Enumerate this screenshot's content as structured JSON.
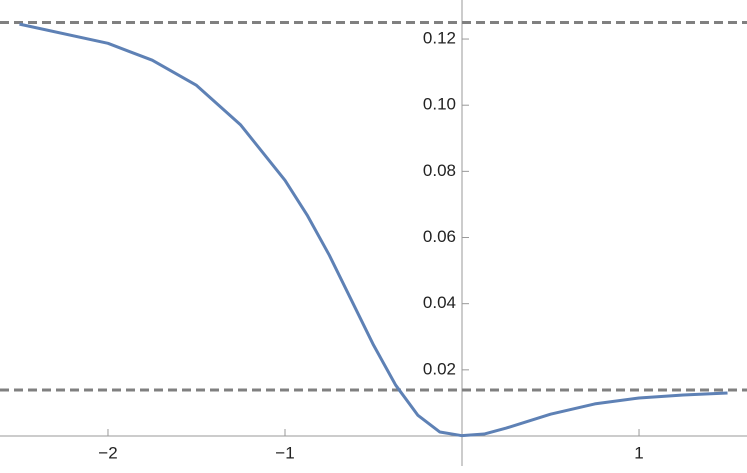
{
  "chart_data": {
    "type": "line",
    "x": [
      -2.5,
      -2,
      -1.75,
      -1.5,
      -1.25,
      -1,
      -0.875,
      -0.75,
      -0.625,
      -0.5,
      -0.375,
      -0.25,
      -0.125,
      0,
      0.125,
      0.25,
      0.5,
      0.75,
      1,
      1.25,
      1.5
    ],
    "series": [
      {
        "color": "#5e81b5",
        "values": [
          0.1245,
          0.1187,
          0.1136,
          0.106,
          0.094,
          0.0773,
          0.0668,
          0.0547,
          0.0411,
          0.0275,
          0.0154,
          0.0063,
          0.0012,
          0.0001,
          0.0006,
          0.0024,
          0.0066,
          0.0097,
          0.0115,
          0.0124,
          0.013
        ]
      }
    ],
    "reference_lines": [
      0.125,
      0.0139
    ],
    "reference_color": "#808080",
    "xlim": [
      -2.61,
      1.61
    ],
    "ylim": [
      0,
      0.1318
    ],
    "xticks": [
      {
        "value": -2,
        "label": "−2"
      },
      {
        "value": -1,
        "label": "−1"
      },
      {
        "value": 1,
        "label": "1"
      }
    ],
    "yticks": [
      {
        "value": 0.02,
        "label": "0.02"
      },
      {
        "value": 0.04,
        "label": "0.04"
      },
      {
        "value": 0.06,
        "label": "0.06"
      },
      {
        "value": 0.08,
        "label": "0.08"
      },
      {
        "value": 0.1,
        "label": "0.10"
      },
      {
        "value": 0.12,
        "label": "0.12"
      }
    ]
  }
}
